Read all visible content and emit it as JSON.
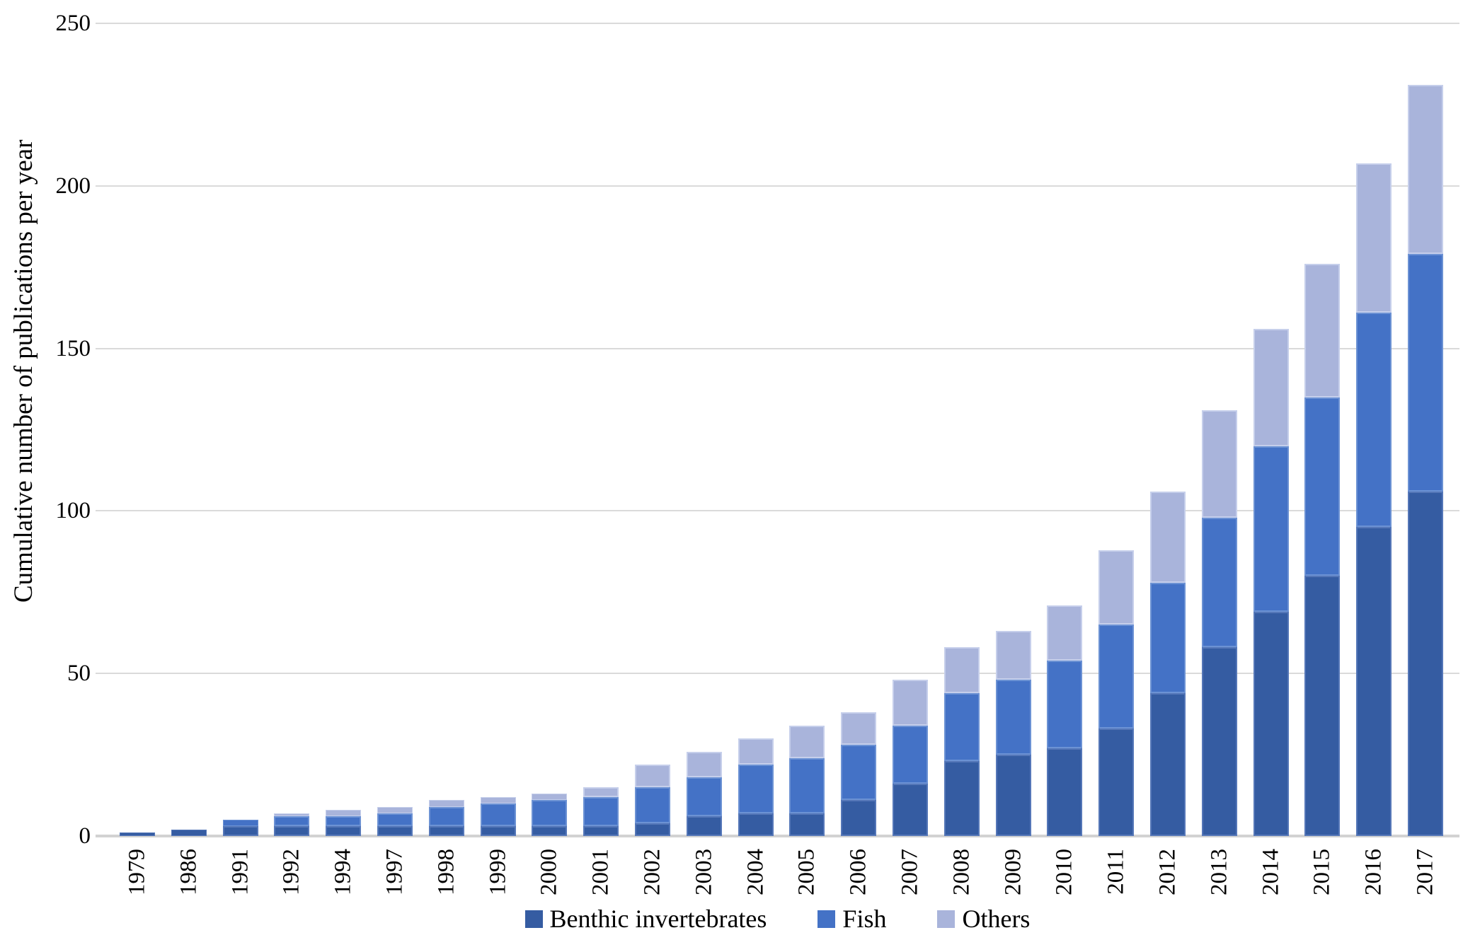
{
  "chart_data": {
    "type": "bar",
    "stacked": true,
    "title": "",
    "xlabel": "",
    "ylabel": "Cumulative number of publications per year",
    "ylim": [
      0,
      250
    ],
    "yticks": [
      0,
      50,
      100,
      150,
      200,
      250
    ],
    "grid": "horizontal",
    "legend_position": "bottom-center",
    "categories": [
      "1979",
      "1986",
      "1991",
      "1992",
      "1994",
      "1997",
      "1998",
      "1999",
      "2000",
      "2001",
      "2002",
      "2003",
      "2004",
      "2005",
      "2006",
      "2007",
      "2008",
      "2009",
      "2010",
      "2011",
      "2012",
      "2013",
      "2014",
      "2015",
      "2016",
      "2017"
    ],
    "series": [
      {
        "name": "Benthic invertebrates",
        "color": "#355CA2",
        "edge_color": "#5577B8",
        "values": [
          1,
          2,
          3,
          3,
          3,
          3,
          3,
          3,
          3,
          3,
          4,
          6,
          7,
          7,
          11,
          16,
          23,
          25,
          27,
          33,
          44,
          58,
          69,
          80,
          95,
          106
        ]
      },
      {
        "name": "Fish",
        "color": "#4472C6",
        "edge_color": "#6C92D4",
        "values": [
          0,
          0,
          2,
          3,
          3,
          4,
          6,
          7,
          8,
          9,
          11,
          12,
          15,
          17,
          17,
          18,
          21,
          23,
          27,
          32,
          34,
          40,
          51,
          55,
          66,
          73
        ]
      },
      {
        "name": "Others",
        "color": "#A9B4DB",
        "edge_color": "#C6CFEB",
        "values": [
          0,
          0,
          0,
          1,
          2,
          2,
          2,
          2,
          2,
          3,
          7,
          8,
          8,
          10,
          10,
          14,
          14,
          15,
          17,
          23,
          28,
          33,
          36,
          41,
          46,
          52
        ]
      }
    ],
    "totals": [
      1,
      2,
      5,
      7,
      8,
      9,
      11,
      12,
      13,
      15,
      22,
      26,
      30,
      34,
      38,
      48,
      58,
      63,
      71,
      88,
      106,
      131,
      156,
      176,
      207,
      231
    ]
  },
  "colors": {
    "background": "#FFFFFF",
    "gridline": "#DADADA",
    "axis_line": "#D2D2D2",
    "text": "#000000"
  }
}
